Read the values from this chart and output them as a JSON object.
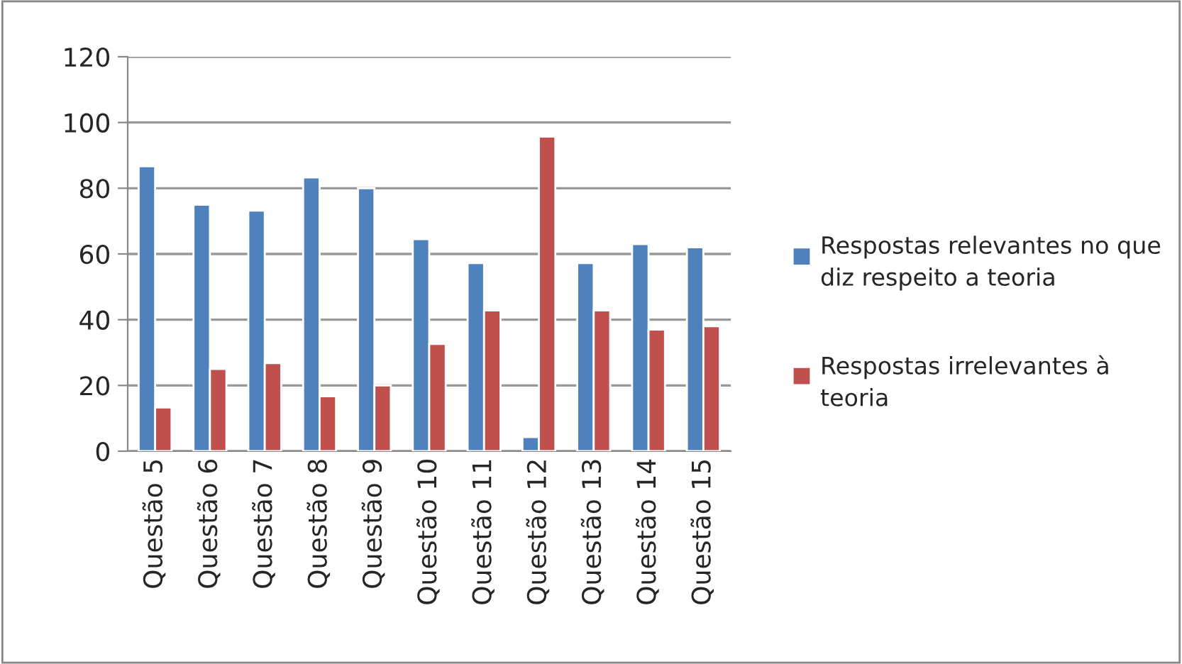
{
  "chart_data": {
    "type": "bar",
    "categories": [
      "Questão 5",
      "Questão 6",
      "Questão 7",
      "Questão 8",
      "Questão 9",
      "Questão 10",
      "Questão 11",
      "Questão 12",
      "Questão 13",
      "Questão 14",
      "Questão 15"
    ],
    "series": [
      {
        "name": "Respostas relevantes no que diz respeito a teoria",
        "color": "#4f81bd",
        "values": [
          86.7,
          75,
          73.2,
          83.3,
          80,
          64.5,
          57.2,
          4.3,
          57.2,
          63,
          62
        ]
      },
      {
        "name": "Respostas irrelevantes à teoria",
        "color": "#c0504d",
        "values": [
          13.3,
          25,
          26.8,
          16.7,
          20,
          32.6,
          42.8,
          95.7,
          42.8,
          37,
          38
        ]
      }
    ],
    "ylim": [
      0,
      120
    ],
    "yticks": [
      0,
      20,
      40,
      60,
      80,
      100,
      120
    ],
    "grid": "y",
    "legend": "right"
  }
}
